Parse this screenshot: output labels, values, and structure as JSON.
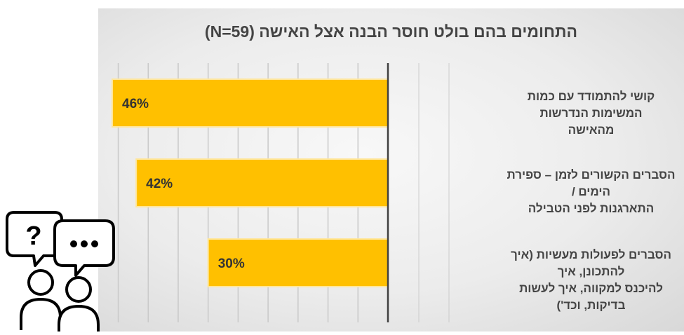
{
  "chart_data": {
    "type": "bar",
    "orientation": "horizontal",
    "direction": "right-to-left",
    "title": "התחומים בהם בולט חוסר הבנה אצל האישה (N=59)",
    "categories": [
      "קושי להתמודד עם כמות המשימות הנדרשות מהאישה",
      "הסברים הקשורים לזמן – ספירת הימים / התארגנות לפני הטבילה",
      "הסברים לפעולות מעשיות (איך להתכונן, איך להיכנס למקווה, איך לעשות בדיקות, וכד')"
    ],
    "category_lines": [
      [
        "קושי להתמודד עם כמות המשימות הנדרשות",
        "מהאישה"
      ],
      [
        "הסברים הקשורים לזמן – ספירת הימים /",
        "התארגנות לפני הטבילה"
      ],
      [
        "הסברים לפעולות מעשיות (איך להתכונן, איך",
        "להיכנס למקווה, איך לעשות בדיקות, וכד')"
      ]
    ],
    "values": [
      46,
      42,
      30
    ],
    "data_labels": [
      "46%",
      "42%",
      "30%"
    ],
    "unit": "%",
    "xlim": [
      0,
      60
    ],
    "grid": true,
    "legend": "none",
    "colors": {
      "bar": "#ffc000",
      "bar_border": "#ffe699",
      "label": "#333333",
      "axis": "#404040",
      "grid": "#c9c9c9"
    }
  },
  "icons": {
    "people": "two-people-speech-bubbles-icon"
  }
}
